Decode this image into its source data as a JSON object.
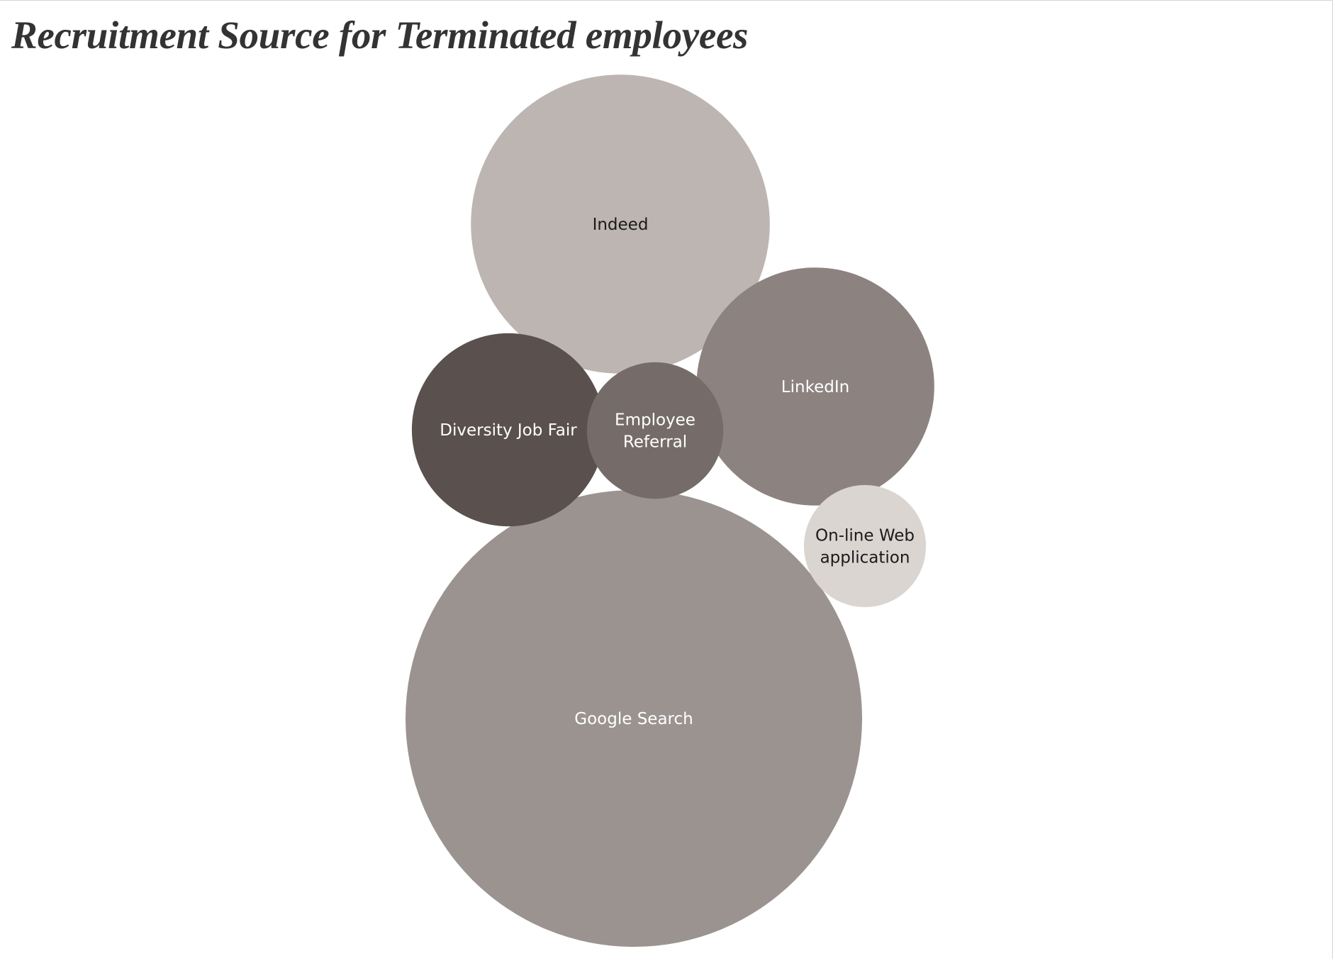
{
  "chart_data": {
    "type": "bubble",
    "title": "Recruitment Source for Terminated employees",
    "categories": [
      "Google Search",
      "Indeed",
      "LinkedIn",
      "Diversity Job Fair",
      "Employee Referral",
      "On-line Web application"
    ],
    "values": [
      14,
      6,
      3.8,
      2.5,
      1.25,
      1
    ],
    "colors": {
      "Google Search": "#9b9390",
      "Indeed": "#bdb5b2",
      "LinkedIn": "#8c8380",
      "Diversity Job Fair": "#5a504d",
      "Employee Referral": "#756c69",
      "On-line Web application": "#dbd5d2"
    },
    "label_colors": {
      "Google Search": "#ffffff",
      "Indeed": "#1a1a1a",
      "LinkedIn": "#ffffff",
      "Diversity Job Fair": "#ffffff",
      "Employee Referral": "#ffffff",
      "On-line Web application": "#1a1a1a"
    },
    "legend": "none",
    "grid": false
  }
}
